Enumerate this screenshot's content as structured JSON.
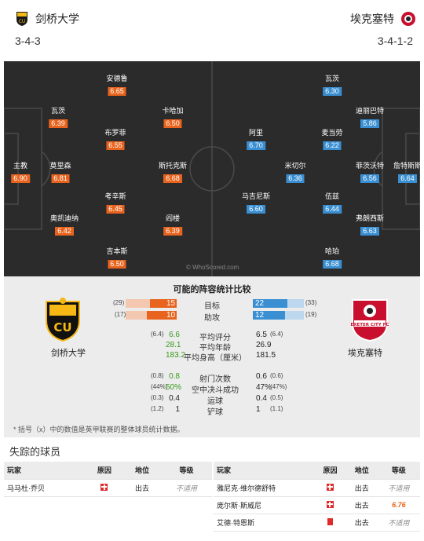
{
  "home": {
    "name": "剑桥大学",
    "formation": "3-4-3",
    "badge_text": "CU"
  },
  "away": {
    "name": "埃克塞特",
    "formation": "3-4-1-2",
    "badge_text": "EXETER CITY FC"
  },
  "players": {
    "home": [
      {
        "name": "主教",
        "rating": "6.90"
      },
      {
        "name": "瓦茨",
        "rating": "6.39"
      },
      {
        "name": "莫里森",
        "rating": "6.81"
      },
      {
        "name": "奥凯迪纳",
        "rating": "6.42"
      },
      {
        "name": "安德鲁",
        "rating": "6.65"
      },
      {
        "name": "布罗菲",
        "rating": "6.55"
      },
      {
        "name": "考辛斯",
        "rating": "6.45"
      },
      {
        "name": "吉本斯",
        "rating": "6.50"
      },
      {
        "name": "卡哈加",
        "rating": "6.50"
      },
      {
        "name": "斯托克斯",
        "rating": "6.68"
      },
      {
        "name": "阎楼",
        "rating": "6.39"
      }
    ],
    "away": [
      {
        "name": "瓦茨",
        "rating": "6.30"
      },
      {
        "name": "阿里",
        "rating": "6.70"
      },
      {
        "name": "马吉尼斯",
        "rating": "6.60"
      },
      {
        "name": "米切尔",
        "rating": "6.36"
      },
      {
        "name": "麦当劳",
        "rating": "6.22"
      },
      {
        "name": "伍兹",
        "rating": "6.44"
      },
      {
        "name": "哈珀",
        "rating": "6.68"
      },
      {
        "name": "迪丽巴特",
        "rating": "5.86"
      },
      {
        "name": "菲茨沃特",
        "rating": "6.56"
      },
      {
        "name": "弗朗西斯",
        "rating": "6.63"
      },
      {
        "name": "詹特斯斯",
        "rating": "6.64"
      }
    ]
  },
  "watermark": "© WhoScored.com",
  "comparison": {
    "title": "可能的阵容统计比较",
    "goals": {
      "label": "目标",
      "home": "15",
      "home_avg": "(29)",
      "away": "22",
      "away_avg": "(33)",
      "home_frac": 0.52,
      "away_frac": 0.67
    },
    "assists": {
      "label": "助攻",
      "home": "10",
      "home_avg": "(17)",
      "away": "12",
      "away_avg": "(19)",
      "home_frac": 0.59,
      "away_frac": 0.63
    },
    "rows": [
      {
        "label": "平均评分",
        "home": "6.6",
        "home_avg": "(6.4)",
        "away": "6.5",
        "away_avg": "(6.4)",
        "home_green": true
      },
      {
        "label": "平均年龄",
        "home": "28.1",
        "home_avg": "",
        "away": "26.9",
        "away_avg": "",
        "home_green": true
      },
      {
        "label": "平均身高（厘米）",
        "home": "183.2",
        "home_avg": "",
        "away": "181.5",
        "away_avg": "",
        "home_green": true
      },
      {
        "label": "射门次数",
        "home": "0.8",
        "home_avg": "(0.8)",
        "away": "0.6",
        "away_avg": "(0.6)",
        "home_green": true
      },
      {
        "label": "空中决斗成功",
        "home": "50%",
        "home_avg": "(44%)",
        "away": "47%",
        "away_avg": "(47%)",
        "home_green": true
      },
      {
        "label": "运球",
        "home": "0.4",
        "home_avg": "(0.3)",
        "away": "0.4",
        "away_avg": "(0.5)",
        "home_green": false
      },
      {
        "label": "铲球",
        "home": "1",
        "home_avg": "(1.2)",
        "away": "1",
        "away_avg": "(1.1)",
        "home_green": false
      }
    ],
    "note": "* 括号（x）中的数值是英甲联赛的整体球员统计数据。"
  },
  "missing": {
    "title": "失踪的球员",
    "headers": [
      "玩家",
      "原因",
      "地位",
      "等级"
    ],
    "home": [
      {
        "player": "马马杜·乔贝",
        "status": "出去",
        "rating": "不适用",
        "icon": "injury"
      }
    ],
    "away": [
      {
        "player": "雅尼克·维尔德舒特",
        "status": "出去",
        "rating": "不适用",
        "icon": "injury"
      },
      {
        "player": "庞尔斯·斯威尼",
        "status": "出去",
        "rating": "6.76",
        "icon": "injury"
      },
      {
        "player": "艾德·特恩斯",
        "status": "出去",
        "rating": "不适用",
        "icon": "red-card"
      }
    ]
  }
}
